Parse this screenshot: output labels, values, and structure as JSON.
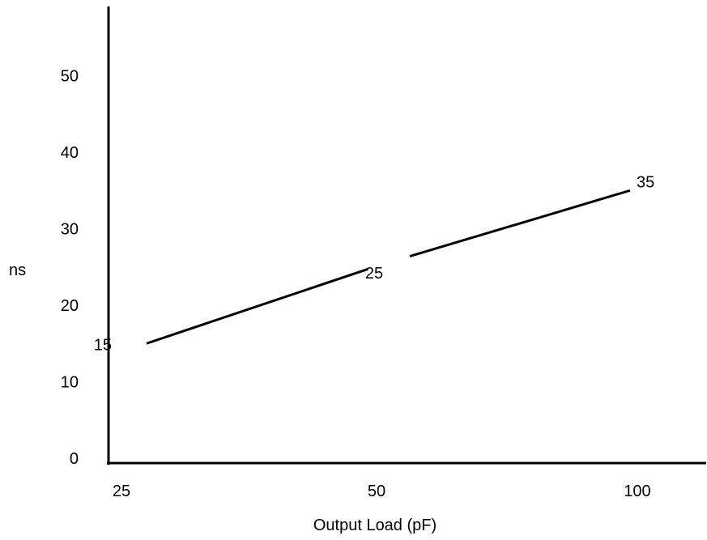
{
  "chart_data": {
    "type": "line",
    "categories": [
      "25",
      "50",
      "100"
    ],
    "series": [
      {
        "values": [
          15,
          25,
          35
        ],
        "color": "#000000"
      }
    ],
    "data_labels": [
      "15",
      "25",
      "35"
    ],
    "title": "",
    "xlabel": "Output Load (pF)",
    "ylabel": "ns",
    "ylim": [
      0,
      60
    ],
    "yticks": [
      "0",
      "10",
      "20",
      "30",
      "40",
      "50"
    ],
    "grid": false,
    "legend": "none",
    "axis_color": "#000000"
  }
}
